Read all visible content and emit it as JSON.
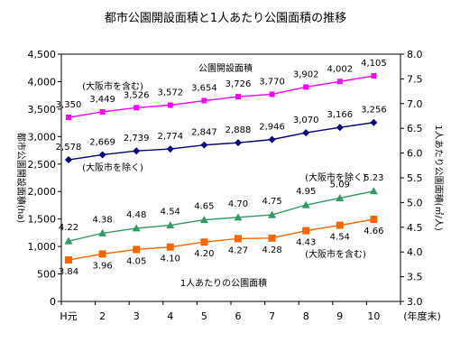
{
  "chart_data": {
    "type": "line",
    "title": "都市公園開設面積と1人あたり公園面積の推移",
    "categories": [
      "H元",
      "2",
      "3",
      "4",
      "5",
      "6",
      "7",
      "8",
      "9",
      "10"
    ],
    "xunit": "(年度末)",
    "y_left": {
      "label": "都市公園開設面積(ha)",
      "lim": [
        0,
        4500
      ],
      "ticks": [
        "0",
        "500",
        "1,000",
        "1,500",
        "2,000",
        "2,500",
        "3,000",
        "3,500",
        "4,000",
        "4,500"
      ]
    },
    "y_right": {
      "label": "1人あたり公園面積(㎡/人)",
      "lim": [
        3.0,
        8.0
      ],
      "ticks": [
        "3.0",
        "3.5",
        "4.0",
        "4.5",
        "5.0",
        "5.5",
        "6.0",
        "6.5",
        "7.0",
        "7.5",
        "8.0"
      ]
    },
    "series": [
      {
        "name": "公園開設面積",
        "qualifier": "(大阪市を含む)",
        "axis": "left",
        "color": "#ff00ff",
        "marker": "square",
        "values": [
          3350,
          3449,
          3526,
          3572,
          3654,
          3726,
          3770,
          3902,
          4002,
          4105
        ],
        "labels": [
          "3,350",
          "3,449",
          "3,526",
          "3,572",
          "3,654",
          "3,726",
          "3,770",
          "3,902",
          "4,002",
          "4,105"
        ]
      },
      {
        "name": "公園開設面積",
        "qualifier": "(大阪市を除く)",
        "axis": "left",
        "color": "#000080",
        "marker": "diamond",
        "values": [
          2578,
          2669,
          2739,
          2774,
          2847,
          2888,
          2946,
          3070,
          3166,
          3256
        ],
        "labels": [
          "2,578",
          "2,669",
          "2,739",
          "2,774",
          "2,847",
          "2,888",
          "2,946",
          "3,070",
          "3,166",
          "3,256"
        ]
      },
      {
        "name": "1人あたりの公園面積",
        "qualifier": "(大阪市を除く)",
        "axis": "right",
        "color": "#339966",
        "marker": "triangle",
        "values": [
          4.22,
          4.38,
          4.48,
          4.54,
          4.65,
          4.7,
          4.75,
          4.95,
          5.09,
          5.23
        ],
        "labels": [
          "4.22",
          "4.38",
          "4.48",
          "4.54",
          "4.65",
          "4.70",
          "4.75",
          "4.95",
          "5.09",
          "5.23"
        ]
      },
      {
        "name": "1人あたりの公園面積",
        "qualifier": "(大阪市を含む)",
        "axis": "right",
        "color": "#ff6600",
        "marker": "square",
        "values": [
          3.84,
          3.96,
          4.05,
          4.1,
          4.2,
          4.27,
          4.28,
          4.43,
          4.54,
          4.66
        ],
        "labels": [
          "3.84",
          "3.96",
          "4.05",
          "4.10",
          "4.20",
          "4.27",
          "4.28",
          "4.43",
          "4.54",
          "4.66"
        ]
      }
    ],
    "annotations": {
      "top_title": "公園開設面積",
      "bottom_title": "1人あたりの公園面積",
      "incl_top": "(大阪市を含む)",
      "excl_top": "(大阪市を除く)",
      "excl_bottom": "(大阪市を除く)",
      "incl_bottom": "(大阪市を含む)"
    },
    "grid": false,
    "legend": "none"
  }
}
